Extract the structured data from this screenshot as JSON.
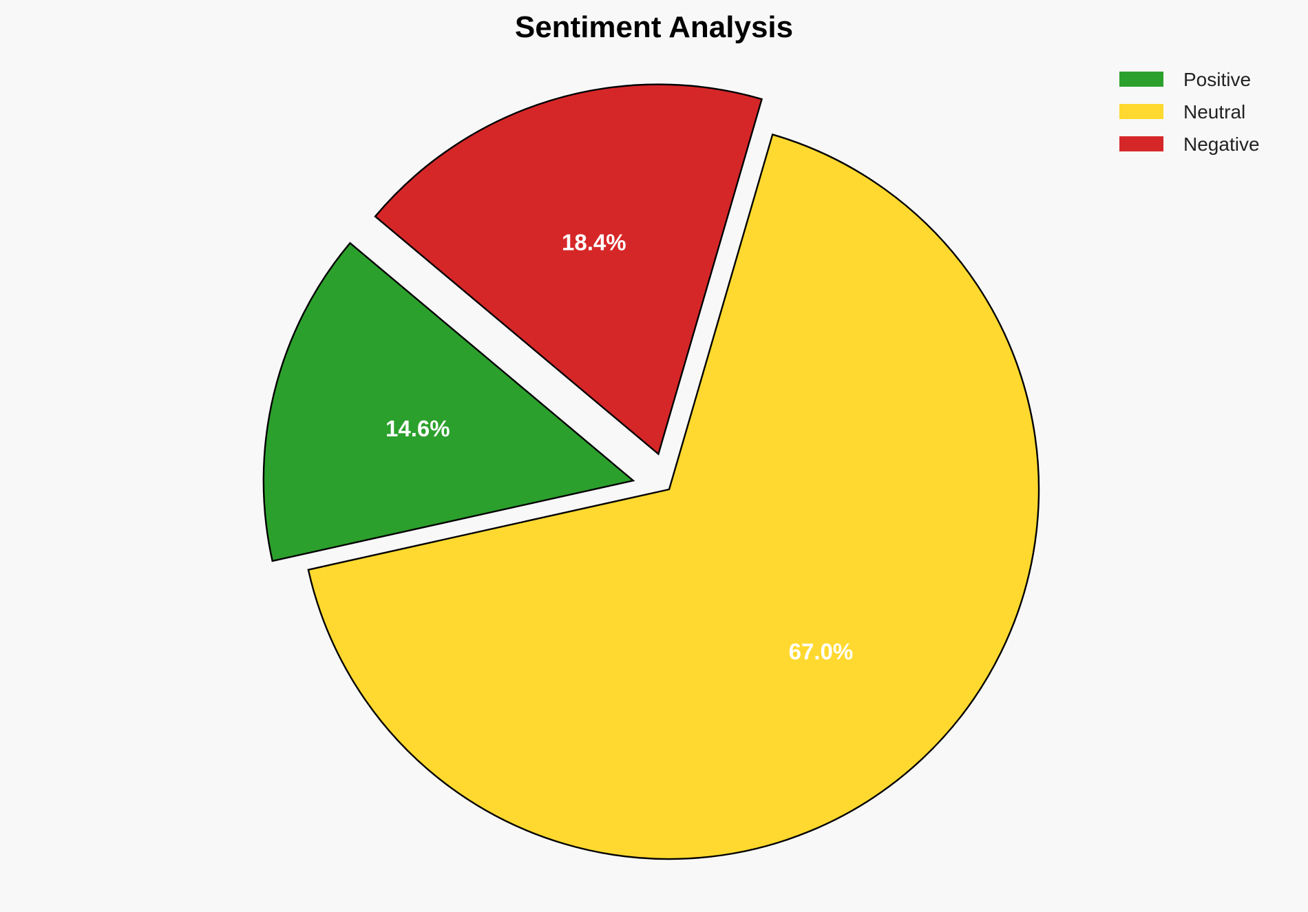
{
  "chart_data": {
    "type": "pie",
    "title": "Sentiment Analysis",
    "categories": [
      "Positive",
      "Neutral",
      "Negative"
    ],
    "values": [
      14.6,
      67.0,
      18.4
    ],
    "labels": [
      "14.6%",
      "67.0%",
      "18.4%"
    ],
    "colors": [
      "#2ca02c",
      "#ffd92f",
      "#d62728"
    ],
    "explode": [
      0.1,
      0,
      0.1
    ],
    "start_angle": 140,
    "edge_color": "#000000",
    "legend_position": "top-right",
    "background": "#f8f8f8"
  }
}
